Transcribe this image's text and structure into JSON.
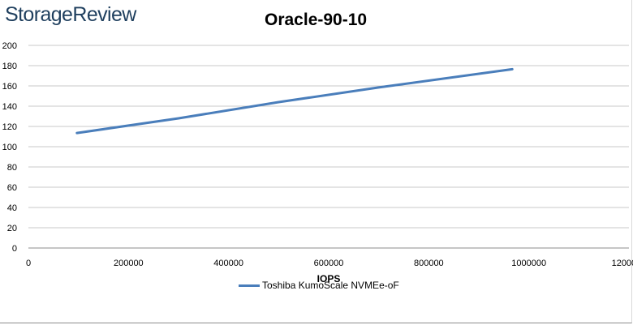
{
  "logo": {
    "text": "StorageReview"
  },
  "colors": {
    "series": "#4a7ebb",
    "grid": "#c8c8c8",
    "axis": "#8c8c8c",
    "logo": "#1f3f5e"
  },
  "chart_data": {
    "type": "line",
    "title": "Oracle-90-10",
    "xlabel": "IOPS",
    "ylabel": "",
    "xlim": [
      0,
      1200000
    ],
    "ylim": [
      0,
      200
    ],
    "x_ticks": [
      0,
      200000,
      400000,
      600000,
      800000,
      1000000,
      1200000
    ],
    "x_tick_labels": [
      "0",
      "200000",
      "400000",
      "600000",
      "800000",
      "1000000",
      "1200000"
    ],
    "y_ticks": [
      0,
      20,
      40,
      60,
      80,
      100,
      120,
      140,
      160,
      180,
      200
    ],
    "y_tick_labels": [
      "0",
      "20",
      "40",
      "60",
      "80",
      "100",
      "120",
      "140",
      "160",
      "180",
      "200"
    ],
    "grid": true,
    "legend_position": "bottom",
    "series": [
      {
        "name": "Toshiba KumoScale NVMEe-oF",
        "x": [
          97000,
          300000,
          500000,
          700000,
          967000
        ],
        "y": [
          113.5,
          128,
          144,
          158.5,
          176.5
        ]
      }
    ]
  }
}
